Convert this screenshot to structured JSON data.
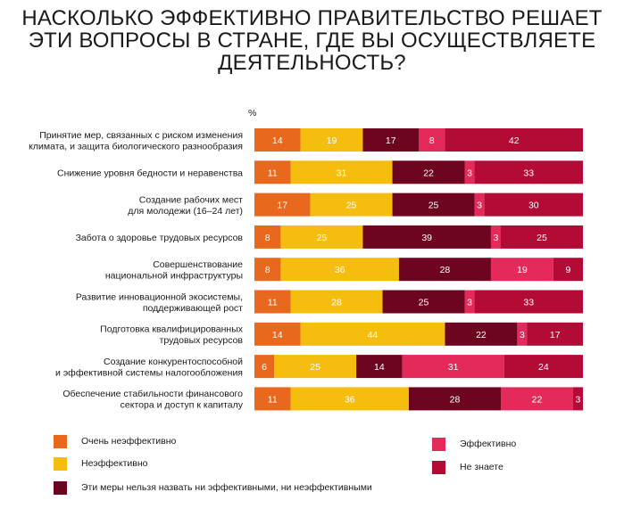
{
  "title_lines": [
    "НАСКОЛЬКО ЭФФЕКТИВНО ПРАВИТЕЛЬСТВО РЕШАЕТ",
    "ЭТИ ВОПРОСЫ В СТРАНЕ, ГДЕ ВЫ ОСУЩЕСТВЛЯЕТЕ",
    "ДЕЯТЕЛЬНОСТЬ?"
  ],
  "colors": {
    "very_ineffective": "#e8691e",
    "ineffective": "#f5be0f",
    "neutral": "#6e0520",
    "effective": "#e32a5a",
    "dont_know": "#b40a36"
  },
  "chart_data": {
    "type": "bar",
    "orientation": "horizontal",
    "stacked": true,
    "unit_label": "%",
    "categories": [
      [
        "Принятие мер, связанных с риском изменения",
        "климата, и защита биологического разнообразия"
      ],
      [
        "Снижение уровня бедности и неравенства"
      ],
      [
        "Создание рабочих мест",
        "для молодежи (16–24 лет)"
      ],
      [
        "Забота о здоровье трудовых ресурсов"
      ],
      [
        "Совершенствование",
        "национальной инфраструктуры"
      ],
      [
        "Развитие инновационной экосистемы,",
        "поддерживающей рост"
      ],
      [
        "Подготовка квалифицированных",
        "трудовых ресурсов"
      ],
      [
        "Создание конкурентоспособной",
        "и эффективной системы налогообложения"
      ],
      [
        "Обеспечение стабильности финансового",
        "сектора и доступ к капиталу"
      ]
    ],
    "series": [
      {
        "name": "Очень неэффективно",
        "color_key": "very_ineffective",
        "values": [
          14,
          11,
          17,
          8,
          8,
          11,
          14,
          6,
          11
        ]
      },
      {
        "name": "Неэффективно",
        "color_key": "ineffective",
        "values": [
          19,
          31,
          25,
          25,
          36,
          28,
          44,
          25,
          36
        ]
      },
      {
        "name": "Эти меры нельзя назвать ни эффективными, ни неэффективными",
        "color_key": "neutral",
        "values": [
          17,
          22,
          25,
          39,
          28,
          25,
          22,
          14,
          28
        ]
      },
      {
        "name": "Эффективно",
        "color_key": "effective",
        "values": [
          8,
          3,
          3,
          3,
          19,
          3,
          3,
          31,
          22
        ]
      },
      {
        "name": "Не знаете",
        "color_key": "dont_know",
        "values": [
          42,
          33,
          30,
          25,
          9,
          33,
          17,
          24,
          3
        ]
      }
    ],
    "legend_placement": "bottom",
    "grid": false
  }
}
